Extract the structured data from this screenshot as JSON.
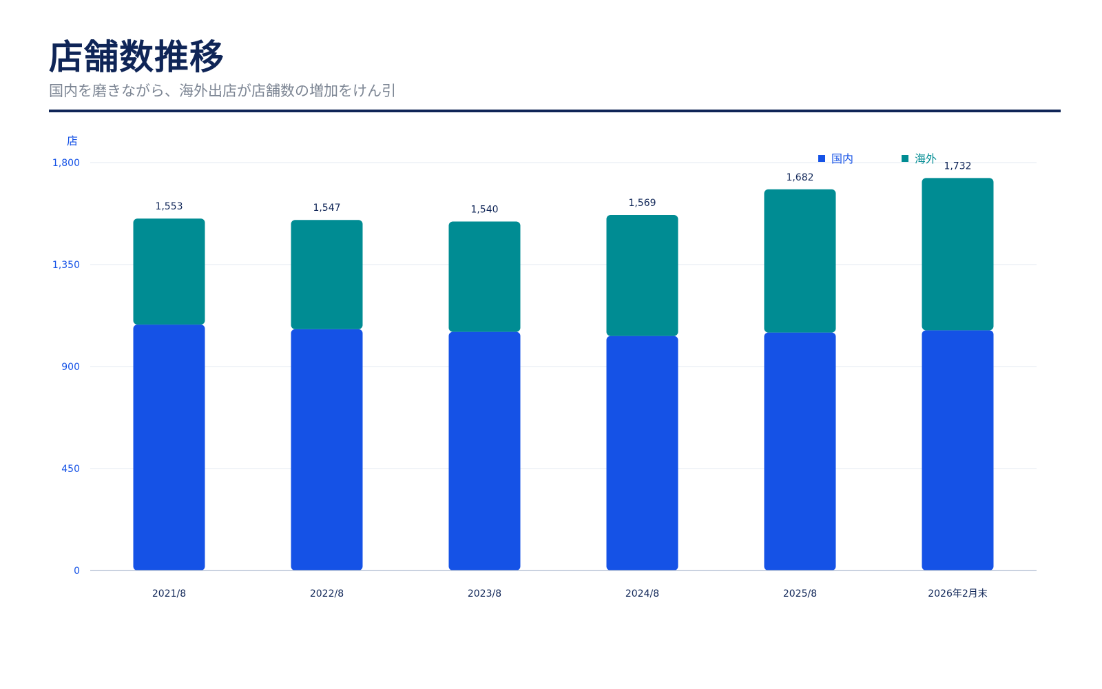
{
  "page": {
    "title": "店舗数推移",
    "subtitle": "国内を磨きながら、海外出店が店舗数の増加をけん引"
  },
  "colors": {
    "domestic": "#1552e6",
    "overseas": "#008c93",
    "axis_text": "#1552e6",
    "label_text": "#0f2557",
    "grid": "#e3e8f2",
    "baseline": "#b8c4d6",
    "title": "#0f2557"
  },
  "chart_data": {
    "type": "bar",
    "stacked": true,
    "categories": [
      "2021/8",
      "2022/8",
      "2023/8",
      "2024/8",
      "2025/8",
      "2026年2月末"
    ],
    "series": [
      {
        "name": "国内",
        "values": [
          1085,
          1065,
          1053,
          1035,
          1050,
          1060
        ]
      },
      {
        "name": "海外",
        "values": [
          468,
          482,
          487,
          534,
          632,
          672
        ]
      }
    ],
    "totals": [
      "1,553",
      "1,547",
      "1,540",
      "1,569",
      "1,682",
      "1,732"
    ],
    "total_values": [
      1553,
      1547,
      1540,
      1569,
      1682,
      1732
    ],
    "ylabel": "店",
    "ylim": [
      0,
      1800
    ],
    "yticks": [
      0,
      450,
      900,
      1350,
      1800
    ],
    "ytick_labels": [
      "0",
      "450",
      "900",
      "1,350",
      "1,800"
    ],
    "grid": true,
    "legend_position": "top-right"
  }
}
